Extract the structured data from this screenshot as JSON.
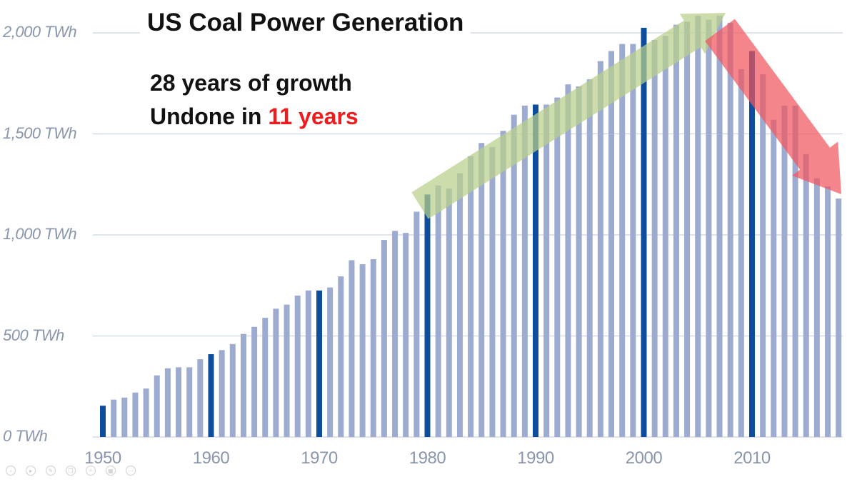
{
  "chart_data": {
    "type": "bar",
    "title": "US Coal Power Generation",
    "annotation": {
      "line1": "28 years of growth",
      "line2_prefix": "Undone in ",
      "line2_highlight": "11 years"
    },
    "xlabel": "",
    "ylabel": "",
    "ylim": [
      0,
      2000
    ],
    "y_ticks": [
      {
        "value": 0,
        "label": "0 TWh"
      },
      {
        "value": 500,
        "label": "500 TWh"
      },
      {
        "value": 1000,
        "label": "1,000 TWh"
      },
      {
        "value": 1500,
        "label": "1,500 TWh"
      },
      {
        "value": 2000,
        "label": "2,000 TWh"
      }
    ],
    "x_ticks": [
      "1950",
      "1960",
      "1970",
      "1980",
      "1990",
      "2000",
      "2010"
    ],
    "highlighted_years": [
      1950,
      1960,
      1970,
      1980,
      1990,
      2000,
      2010
    ],
    "years": [
      1950,
      1951,
      1952,
      1953,
      1954,
      1955,
      1956,
      1957,
      1958,
      1959,
      1960,
      1961,
      1962,
      1963,
      1964,
      1965,
      1966,
      1967,
      1968,
      1969,
      1970,
      1971,
      1972,
      1973,
      1974,
      1975,
      1976,
      1977,
      1978,
      1979,
      1980,
      1981,
      1982,
      1983,
      1984,
      1985,
      1986,
      1987,
      1988,
      1989,
      1990,
      1991,
      1992,
      1993,
      1994,
      1995,
      1996,
      1997,
      1998,
      1999,
      2000,
      2001,
      2002,
      2003,
      2004,
      2005,
      2006,
      2007,
      2008,
      2009,
      2010,
      2011,
      2012,
      2013,
      2014,
      2015,
      2016,
      2017,
      2018
    ],
    "values": [
      155,
      185,
      195,
      220,
      240,
      305,
      340,
      345,
      345,
      385,
      410,
      430,
      460,
      510,
      545,
      590,
      635,
      655,
      700,
      725,
      725,
      740,
      795,
      875,
      855,
      880,
      975,
      1020,
      1010,
      1115,
      1200,
      1245,
      1230,
      1305,
      1390,
      1455,
      1435,
      1515,
      1595,
      1640,
      1645,
      1645,
      1680,
      1745,
      1735,
      1770,
      1860,
      1910,
      1945,
      1945,
      2025,
      1965,
      1985,
      2040,
      2055,
      2085,
      2065,
      2085,
      2050,
      1820,
      1910,
      1795,
      1570,
      1640,
      1640,
      1400,
      1280,
      1240,
      1180
    ]
  },
  "arrows": {
    "growth_color": "#b9d08a",
    "decline_color": "#f0565e"
  },
  "colors": {
    "bar": "#9eabd1",
    "bar_highlight": "#0d4d9c",
    "grid": "#ccd2de"
  },
  "player_controls": [
    "back-icon",
    "play-icon",
    "pen-icon",
    "copy-icon",
    "zoom-icon",
    "subtitle-icon",
    "more-icon"
  ]
}
